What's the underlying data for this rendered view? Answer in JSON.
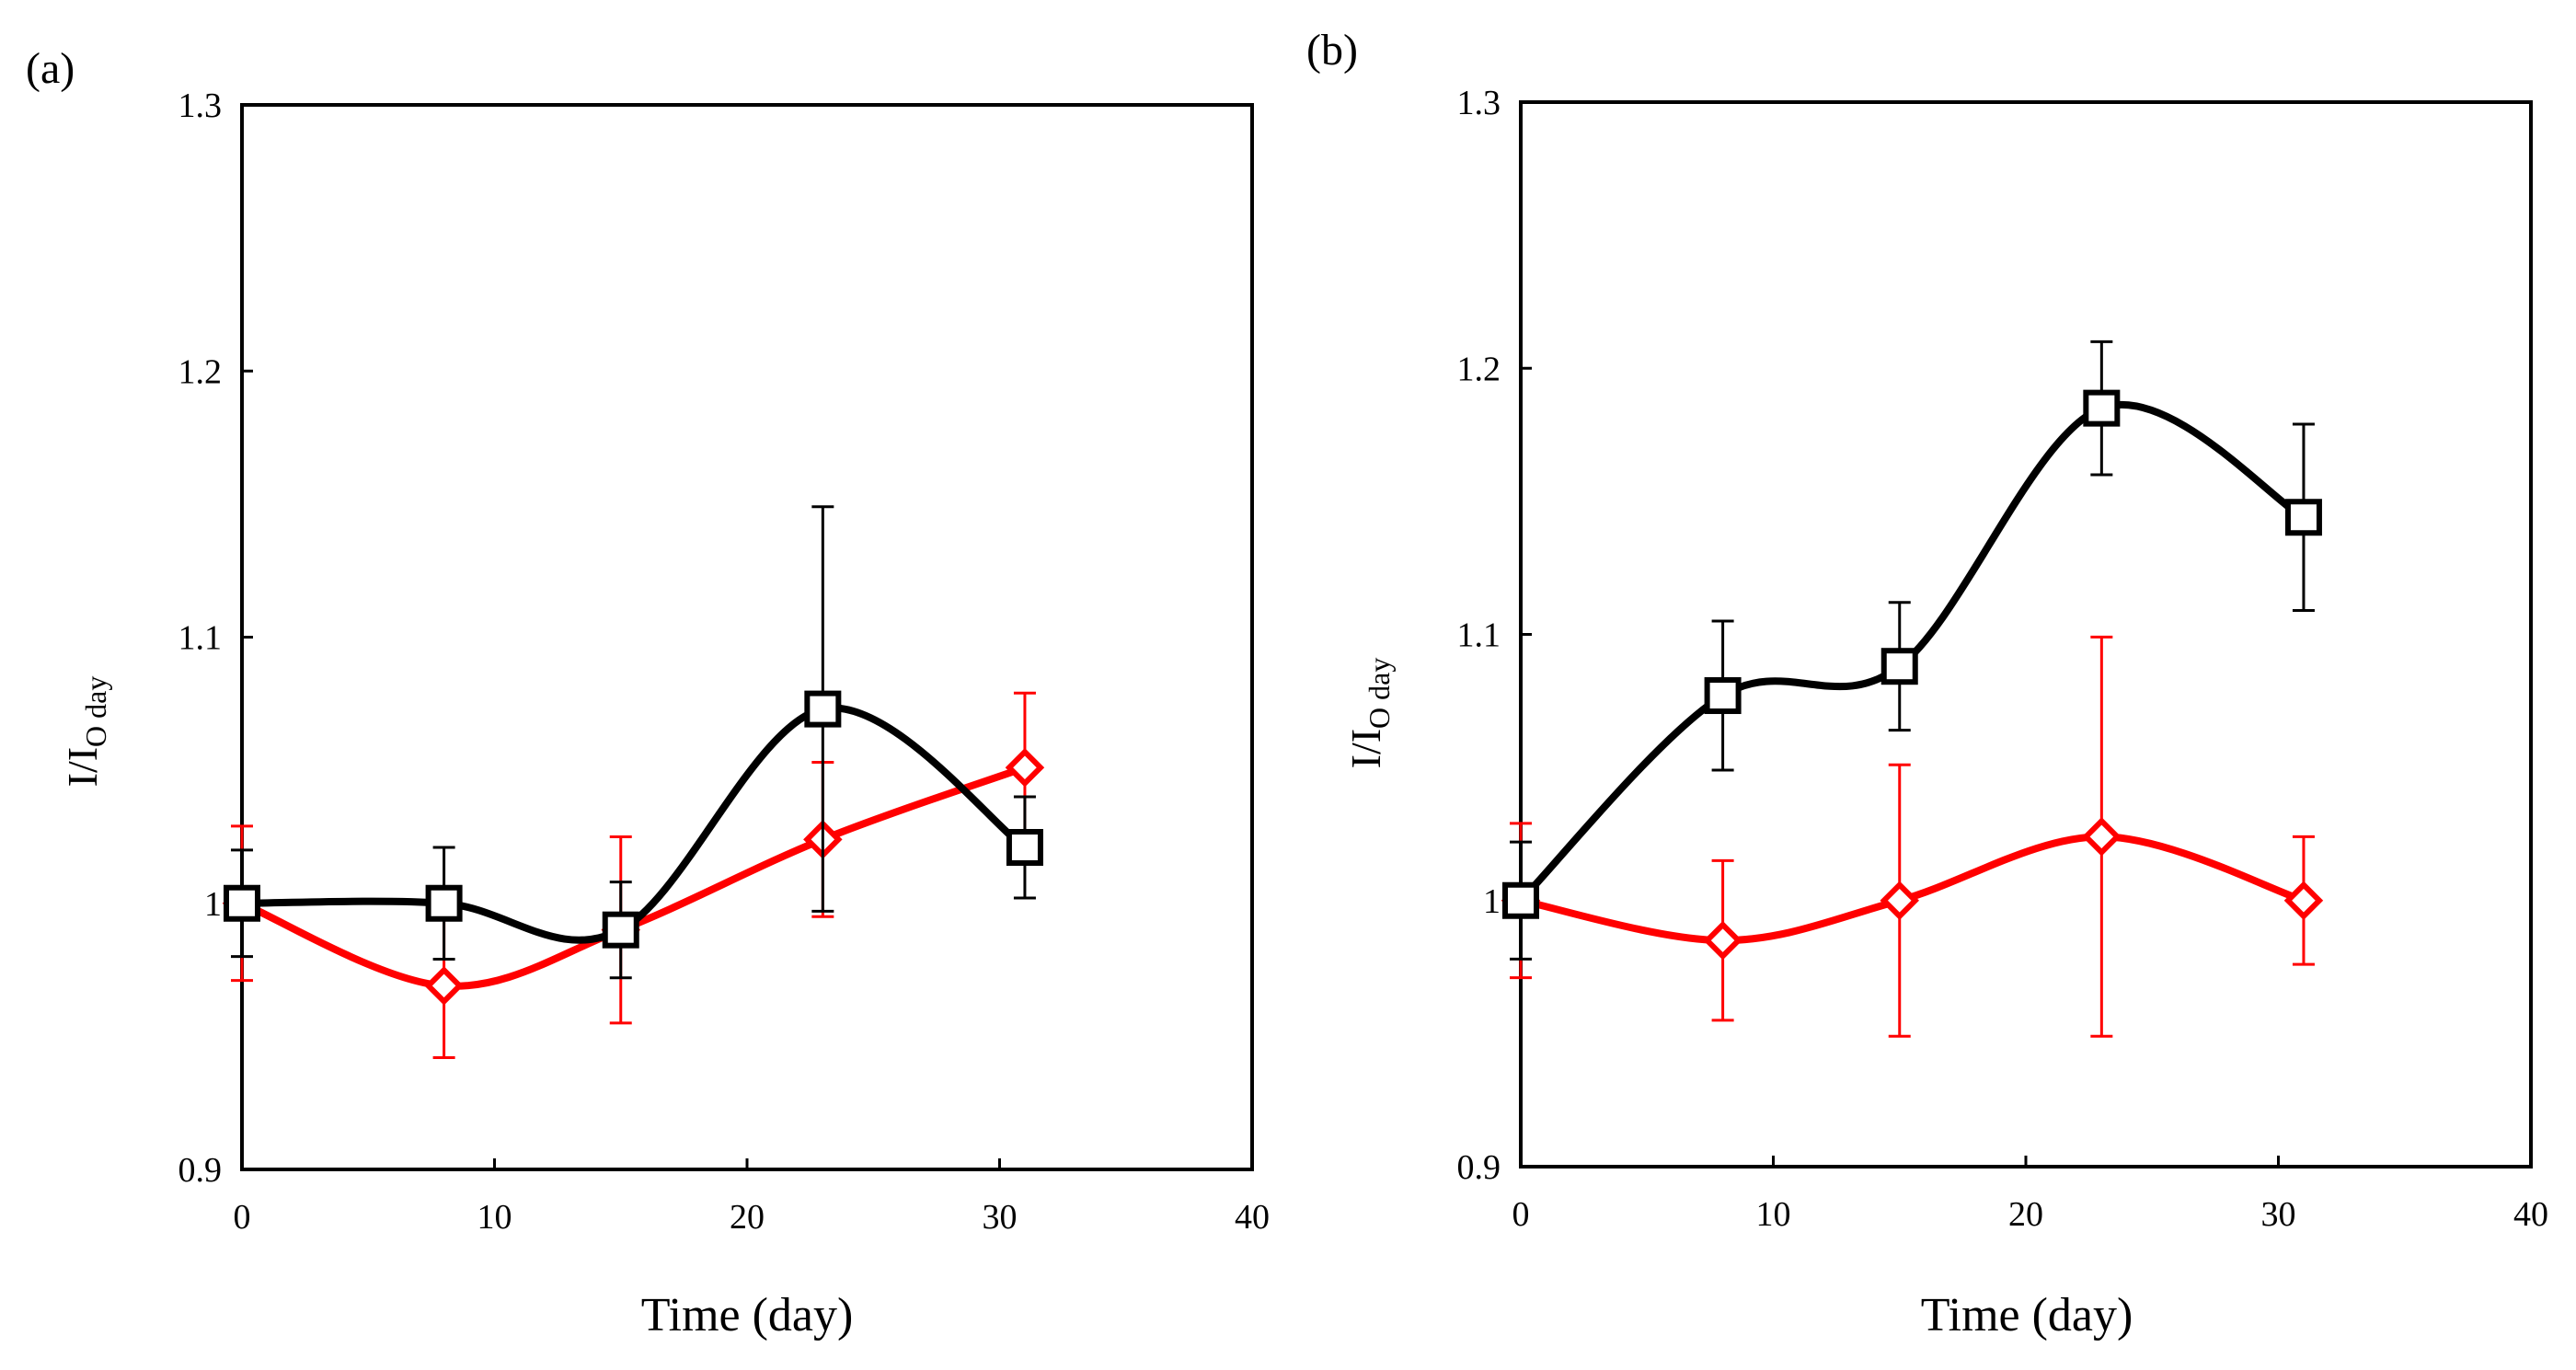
{
  "chart_data": [
    {
      "type": "line",
      "panel_label": "(a)",
      "xlabel": "Time (day)",
      "ylabel": "I/I",
      "ylabel_sub": "O day",
      "xlim": [
        0,
        40
      ],
      "ylim": [
        0.9,
        1.3
      ],
      "xticks": [
        0,
        10,
        20,
        30,
        40
      ],
      "xtick_labels": [
        "0",
        "10",
        "20",
        "30",
        "40"
      ],
      "yticks": [
        0.9,
        1.0,
        1.1,
        1.2,
        1.3
      ],
      "ytick_labels": [
        "0.9",
        "1",
        "1.1",
        "1.2",
        "1.3"
      ],
      "grid": false,
      "series": [
        {
          "name": "black-square",
          "color": "#000000",
          "marker": "square",
          "x": [
            0,
            8,
            15,
            23,
            31
          ],
          "y": [
            1.0,
            1.0,
            0.99,
            1.073,
            1.021
          ],
          "err": [
            0.02,
            0.021,
            0.018,
            0.076,
            0.019
          ]
        },
        {
          "name": "red-diamond",
          "color": "#ff0000",
          "marker": "diamond",
          "x": [
            0,
            8,
            15,
            23,
            31
          ],
          "y": [
            1.0,
            0.969,
            0.99,
            1.024,
            1.051
          ],
          "err": [
            0.029,
            0.027,
            0.035,
            0.029,
            0.028
          ]
        }
      ]
    },
    {
      "type": "line",
      "panel_label": "(b)",
      "xlabel": "Time (day)",
      "ylabel": "I/I",
      "ylabel_sub": "O day",
      "xlim": [
        0,
        40
      ],
      "ylim": [
        0.9,
        1.3
      ],
      "xticks": [
        0,
        10,
        20,
        30,
        40
      ],
      "xtick_labels": [
        "0",
        "10",
        "20",
        "30",
        "40"
      ],
      "yticks": [
        0.9,
        1.0,
        1.1,
        1.2,
        1.3
      ],
      "ytick_labels": [
        "0.9",
        "1",
        "1.1",
        "1.2",
        "1.3"
      ],
      "grid": false,
      "series": [
        {
          "name": "black-square",
          "color": "#000000",
          "marker": "square",
          "x": [
            0,
            8,
            15,
            23,
            31
          ],
          "y": [
            1.0,
            1.077,
            1.088,
            1.185,
            1.144
          ],
          "err": [
            0.022,
            0.028,
            0.024,
            0.025,
            0.035
          ]
        },
        {
          "name": "red-diamond",
          "color": "#ff0000",
          "marker": "diamond",
          "x": [
            0,
            8,
            15,
            23,
            31
          ],
          "y": [
            1.0,
            0.985,
            1.0,
            1.024,
            1.0
          ],
          "err": [
            0.029,
            0.03,
            0.051,
            0.075,
            0.024
          ]
        }
      ]
    }
  ]
}
